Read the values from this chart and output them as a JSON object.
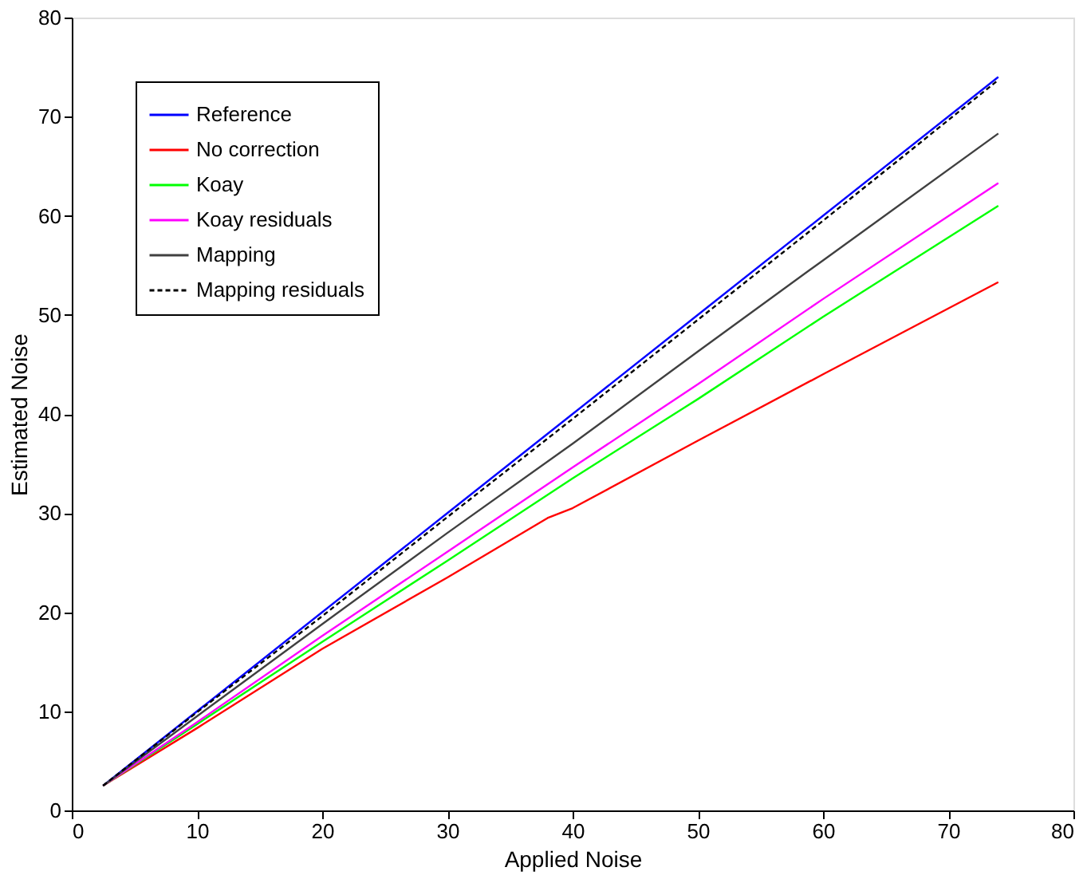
{
  "chart_data": {
    "type": "line",
    "xlabel": "Applied Noise",
    "ylabel": "Estimated Noise",
    "xlim": [
      0,
      80
    ],
    "ylim": [
      0,
      80
    ],
    "xticks": [
      0,
      10,
      20,
      30,
      40,
      50,
      60,
      70,
      80
    ],
    "yticks": [
      0,
      10,
      20,
      30,
      40,
      50,
      60,
      70,
      80
    ],
    "grid": false,
    "legend": "top left",
    "marker": "none",
    "series": [
      {
        "name": "Reference",
        "color": "#0000ff",
        "x": [
          2.5,
          10,
          20,
          30,
          40,
          50,
          60,
          74
        ],
        "values": [
          2.5,
          10,
          20,
          30,
          40,
          50,
          60,
          74
        ]
      },
      {
        "name": "No correction",
        "color": "#ff0000",
        "x": [
          2.5,
          10,
          20,
          30,
          38,
          40,
          50,
          60,
          74
        ],
        "values": [
          2.5,
          8.3,
          16.3,
          23.5,
          29.5,
          30.5,
          37.3,
          44,
          53.3
        ]
      },
      {
        "name": "Koay",
        "color": "#00ff00",
        "x": [
          2.5,
          10,
          20,
          30,
          40,
          50,
          60,
          74
        ],
        "values": [
          2.5,
          8.7,
          17,
          25.2,
          33.5,
          41.5,
          49.8,
          61
        ]
      },
      {
        "name": "Koay residuals",
        "color": "#ff00ff",
        "x": [
          2.5,
          10,
          20,
          30,
          40,
          50,
          60,
          74
        ],
        "values": [
          2.5,
          8.9,
          17.6,
          26.1,
          34.6,
          43,
          51.6,
          63.3
        ]
      },
      {
        "name": "Mapping",
        "color": "#404040",
        "x": [
          2.5,
          10,
          20,
          30,
          40,
          50,
          60,
          74
        ],
        "values": [
          2.5,
          9.5,
          18.8,
          28,
          37,
          46.3,
          55.5,
          68.3
        ]
      },
      {
        "name": "Mapping residuals",
        "color": "#000000",
        "line_style": "dashed",
        "x": [
          2.5,
          10,
          20,
          30,
          40,
          50,
          60,
          74
        ],
        "values": [
          2.5,
          9.9,
          19.6,
          29.6,
          39.5,
          49.5,
          59.5,
          73.7
        ]
      }
    ]
  }
}
